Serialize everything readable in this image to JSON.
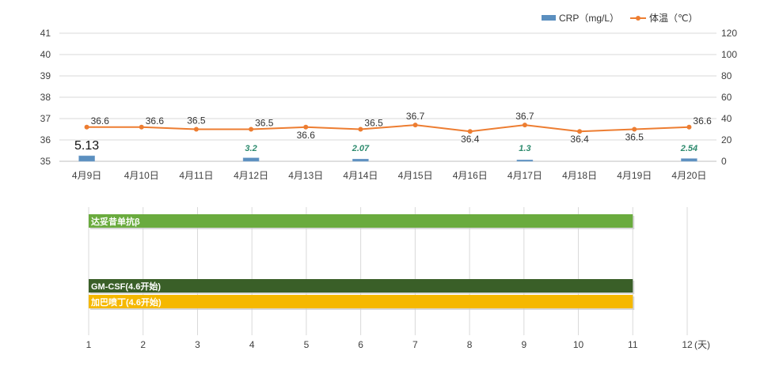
{
  "colors": {
    "crp_bar": "#5b8fbf",
    "temp_line": "#ed7d31",
    "crp_label_green": "#2e8b6e",
    "axis_text": "#404040",
    "grid": "#d9d9d9",
    "bar_green": "#6aab3e",
    "bar_darkgreen": "#3a5f28",
    "bar_gold": "#f5b800"
  },
  "chart_data": [
    {
      "type": "bar+line",
      "title": "",
      "categories": [
        "4月9日",
        "4月10日",
        "4月11日",
        "4月12日",
        "4月13日",
        "4月14日",
        "4月15日",
        "4月16日",
        "4月17日",
        "4月18日",
        "4月19日",
        "4月20日"
      ],
      "legend": {
        "placement": "top-right"
      },
      "series": [
        {
          "name": "CRP（mg/L）",
          "kind": "bar",
          "axis": "right",
          "values": [
            5.13,
            null,
            null,
            3.2,
            null,
            2.07,
            null,
            null,
            1.3,
            null,
            null,
            2.54
          ],
          "labels": [
            "5.13",
            "",
            "",
            "3.2",
            "",
            "2.07",
            "",
            "",
            "1.3",
            "",
            "",
            "2.54"
          ]
        },
        {
          "name": "体温（℃）",
          "kind": "line",
          "axis": "left",
          "values": [
            36.6,
            36.6,
            36.5,
            36.5,
            36.6,
            36.5,
            36.7,
            36.4,
            36.7,
            36.4,
            36.5,
            36.6
          ],
          "labels": [
            "36.6",
            "36.6",
            "36.5",
            "36.5",
            "36.6",
            "36.5",
            "36.7",
            "36.4",
            "36.7",
            "36.4",
            "36.5",
            "36.6"
          ]
        }
      ],
      "y_left": {
        "ylim": [
          35,
          41
        ],
        "ticks": [
          "35",
          "36",
          "37",
          "38",
          "39",
          "40",
          "41"
        ]
      },
      "y_right": {
        "ylim": [
          0,
          120
        ],
        "ticks": [
          "0",
          "20",
          "40",
          "60",
          "80",
          "100",
          "120"
        ]
      },
      "grid": true
    },
    {
      "type": "gantt",
      "x_ticks": [
        "1",
        "2",
        "3",
        "4",
        "5",
        "6",
        "7",
        "8",
        "9",
        "10",
        "11",
        "12"
      ],
      "x_unit": "(天)",
      "xlim": [
        1,
        12
      ],
      "grid": true,
      "series": [
        {
          "name": "达妥昔单抗β",
          "start": 1,
          "end": 11,
          "color": "#6aab3e"
        },
        {
          "name": "GM-CSF(4.6开始)",
          "start": 1,
          "end": 11,
          "color": "#3a5f28"
        },
        {
          "name": "加巴喷丁(4.6开始)",
          "start": 1,
          "end": 11,
          "color": "#f5b800"
        }
      ]
    }
  ]
}
